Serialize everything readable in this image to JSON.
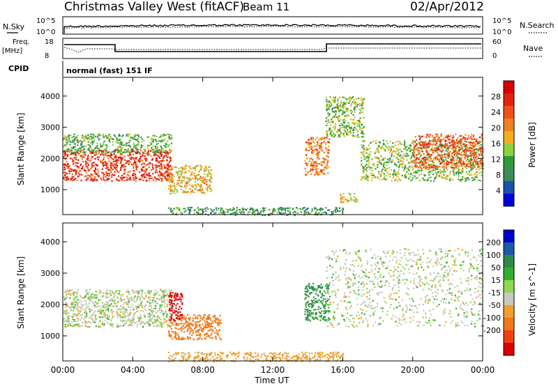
{
  "header": {
    "station": "Christmas Valley West (fitACF)",
    "beam": "Beam 11",
    "date": "02/Apr/2012"
  },
  "panels": {
    "nsky": {
      "label": "N.Sky",
      "tick_top": "10^5",
      "tick_bottom": "10^0"
    },
    "nsearch": {
      "label": "N.Search",
      "tick_top": "10^5",
      "tick_bottom": "10^0"
    },
    "freq": {
      "label_line1": "Freq.",
      "label_line2": "[MHz]",
      "tick_top": "18",
      "tick_bottom": "8"
    },
    "nave": {
      "label": "Nave",
      "tick_top": "60",
      "tick_bottom": "0"
    },
    "cpid": {
      "label": "CPID",
      "value": "normal (fast) 151 IF"
    }
  },
  "colors": {
    "power": [
      "#0000dd",
      "#1c4fb0",
      "#3e8a5a",
      "#2e9a3e",
      "#8fd040",
      "#f0b020",
      "#f08020",
      "#f05018",
      "#e82010",
      "#d80000"
    ],
    "velocity": [
      "#0000cc",
      "#1c5aa8",
      "#2e8a4a",
      "#2fae2f",
      "#90d850",
      "#c8c8c0",
      "#f0a030",
      "#f07818",
      "#f04010",
      "#dd0000"
    ]
  },
  "chart_data": [
    {
      "type": "heatmap",
      "title": "",
      "quantity": "Power",
      "ylabel": "Slant Range [km]",
      "xlabel": "",
      "xlim": [
        "00:00",
        "24:00"
      ],
      "ylim": [
        200,
        4600
      ],
      "yticks": [
        1000,
        2000,
        3000,
        4000
      ],
      "colorbar": {
        "label": "Power [dB]",
        "ticks": [
          4,
          8,
          12,
          16,
          20,
          24,
          28
        ],
        "range": [
          0,
          32
        ]
      },
      "echo_regions": [
        {
          "t_start_h": 0.0,
          "t_end_h": 6.2,
          "range_km": [
            1300,
            2300
          ],
          "level_db": 26
        },
        {
          "t_start_h": 0.0,
          "t_end_h": 6.2,
          "range_km": [
            2200,
            2800
          ],
          "level_db": 12
        },
        {
          "t_start_h": 6.0,
          "t_end_h": 8.5,
          "range_km": [
            900,
            1800
          ],
          "level_db": 18
        },
        {
          "t_start_h": 13.8,
          "t_end_h": 15.2,
          "range_km": [
            1500,
            2700
          ],
          "level_db": 22
        },
        {
          "t_start_h": 15.0,
          "t_end_h": 17.2,
          "range_km": [
            2700,
            4000
          ],
          "level_db": 14
        },
        {
          "t_start_h": 15.8,
          "t_end_h": 16.8,
          "range_km": [
            600,
            900
          ],
          "level_db": 18
        },
        {
          "t_start_h": 17.0,
          "t_end_h": 24.0,
          "range_km": [
            1300,
            2600
          ],
          "level_db": 14
        },
        {
          "t_start_h": 20.0,
          "t_end_h": 24.0,
          "range_km": [
            1700,
            2800
          ],
          "level_db": 24
        },
        {
          "t_start_h": 6.0,
          "t_end_h": 16.0,
          "range_km": [
            200,
            450
          ],
          "level_db": 10
        }
      ]
    },
    {
      "type": "heatmap",
      "title": "",
      "quantity": "Velocity",
      "ylabel": "Slant Range [km]",
      "xlabel": "Time UT",
      "xlim": [
        "00:00",
        "24:00"
      ],
      "ylim": [
        200,
        4600
      ],
      "yticks": [
        1000,
        2000,
        3000,
        4000
      ],
      "xticks": [
        "00:00",
        "04:00",
        "08:00",
        "12:00",
        "16:00",
        "20:00",
        "00:00"
      ],
      "colorbar": {
        "label": "Velocity [m s^-1]",
        "ticks": [
          200,
          100,
          50,
          15,
          -15,
          -50,
          -100,
          -200
        ]
      },
      "echo_regions": [
        {
          "t_start_h": 0.0,
          "t_end_h": 6.2,
          "range_km": [
            1300,
            2500
          ],
          "velocity_ms": 0
        },
        {
          "t_start_h": 6.0,
          "t_end_h": 9.0,
          "range_km": [
            900,
            1700
          ],
          "velocity_ms": -70
        },
        {
          "t_start_h": 6.0,
          "t_end_h": 6.8,
          "range_km": [
            1500,
            2400
          ],
          "velocity_ms": -200
        },
        {
          "t_start_h": 13.8,
          "t_end_h": 15.2,
          "range_km": [
            1500,
            2700
          ],
          "velocity_ms": 40
        },
        {
          "t_start_h": 15.0,
          "t_end_h": 24.0,
          "range_km": [
            1300,
            3800
          ],
          "velocity_ms": 0
        },
        {
          "t_start_h": 6.0,
          "t_end_h": 16.0,
          "range_km": [
            200,
            500
          ],
          "velocity_ms": -30
        }
      ]
    }
  ]
}
